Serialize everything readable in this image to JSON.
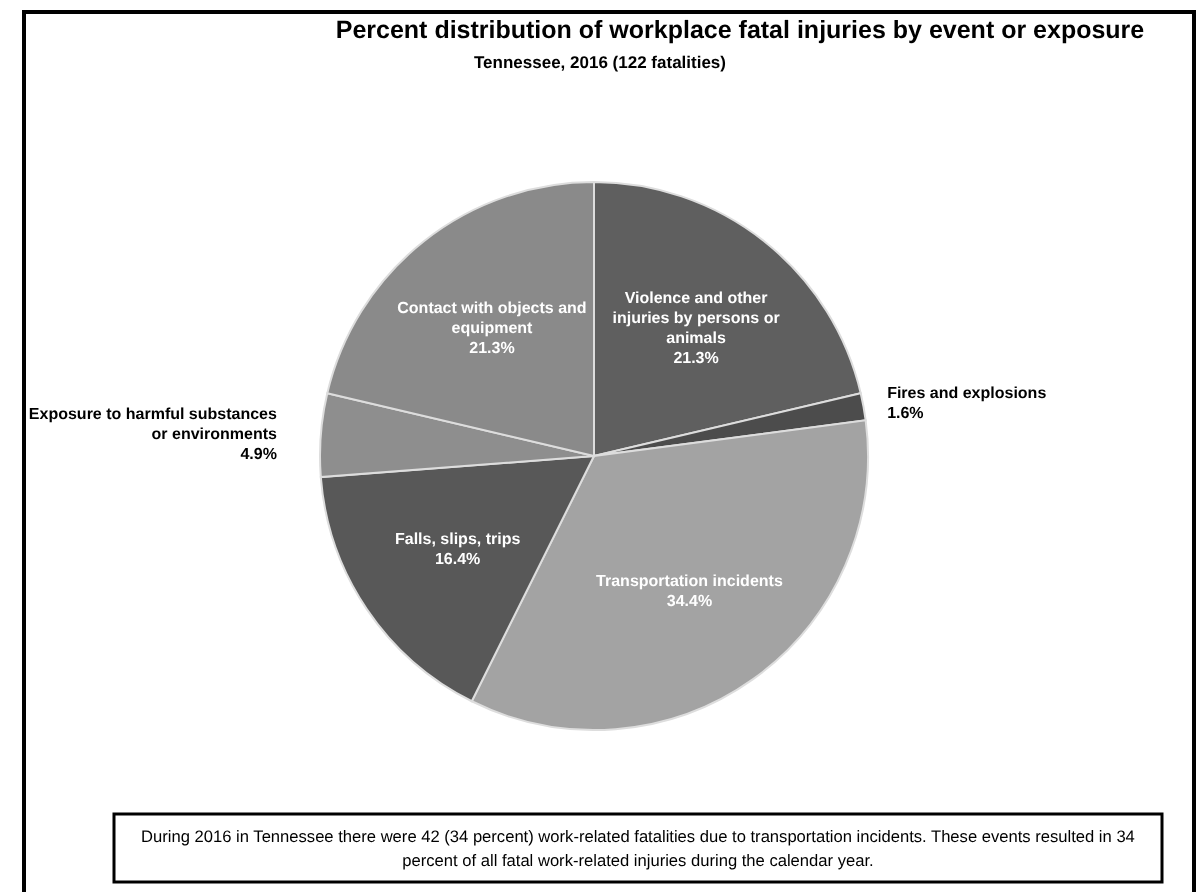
{
  "chart_data": {
    "type": "pie",
    "title": "Percent distribution of workplace fatal injuries by event or exposure",
    "subtitle": "Tennessee, 2016 (122 fatalities)",
    "categories": [
      "Violence and other injuries by persons or animals",
      "Fires and explosions",
      "Transportation incidents",
      "Falls, slips, trips",
      "Exposure to harmful substances or environments",
      "Contact with objects and equipment"
    ],
    "values": [
      21.3,
      1.6,
      34.4,
      16.4,
      4.9,
      21.3
    ],
    "value_labels": [
      "21.3%",
      "1.6%",
      "34.4%",
      "16.4%",
      "4.9%",
      "21.3%"
    ],
    "colors": [
      "#5f5f5f",
      "#4c4c4c",
      "#a3a3a3",
      "#585858",
      "#8e8e8e",
      "#8a8a8a"
    ],
    "legend": false,
    "annotations": [
      "During 2016 in Tennessee there were 42 (34 percent) work-related fatalities due to transportation incidents.  These events resulted in 34 percent of all fatal work-related injuries during the calendar year."
    ]
  }
}
